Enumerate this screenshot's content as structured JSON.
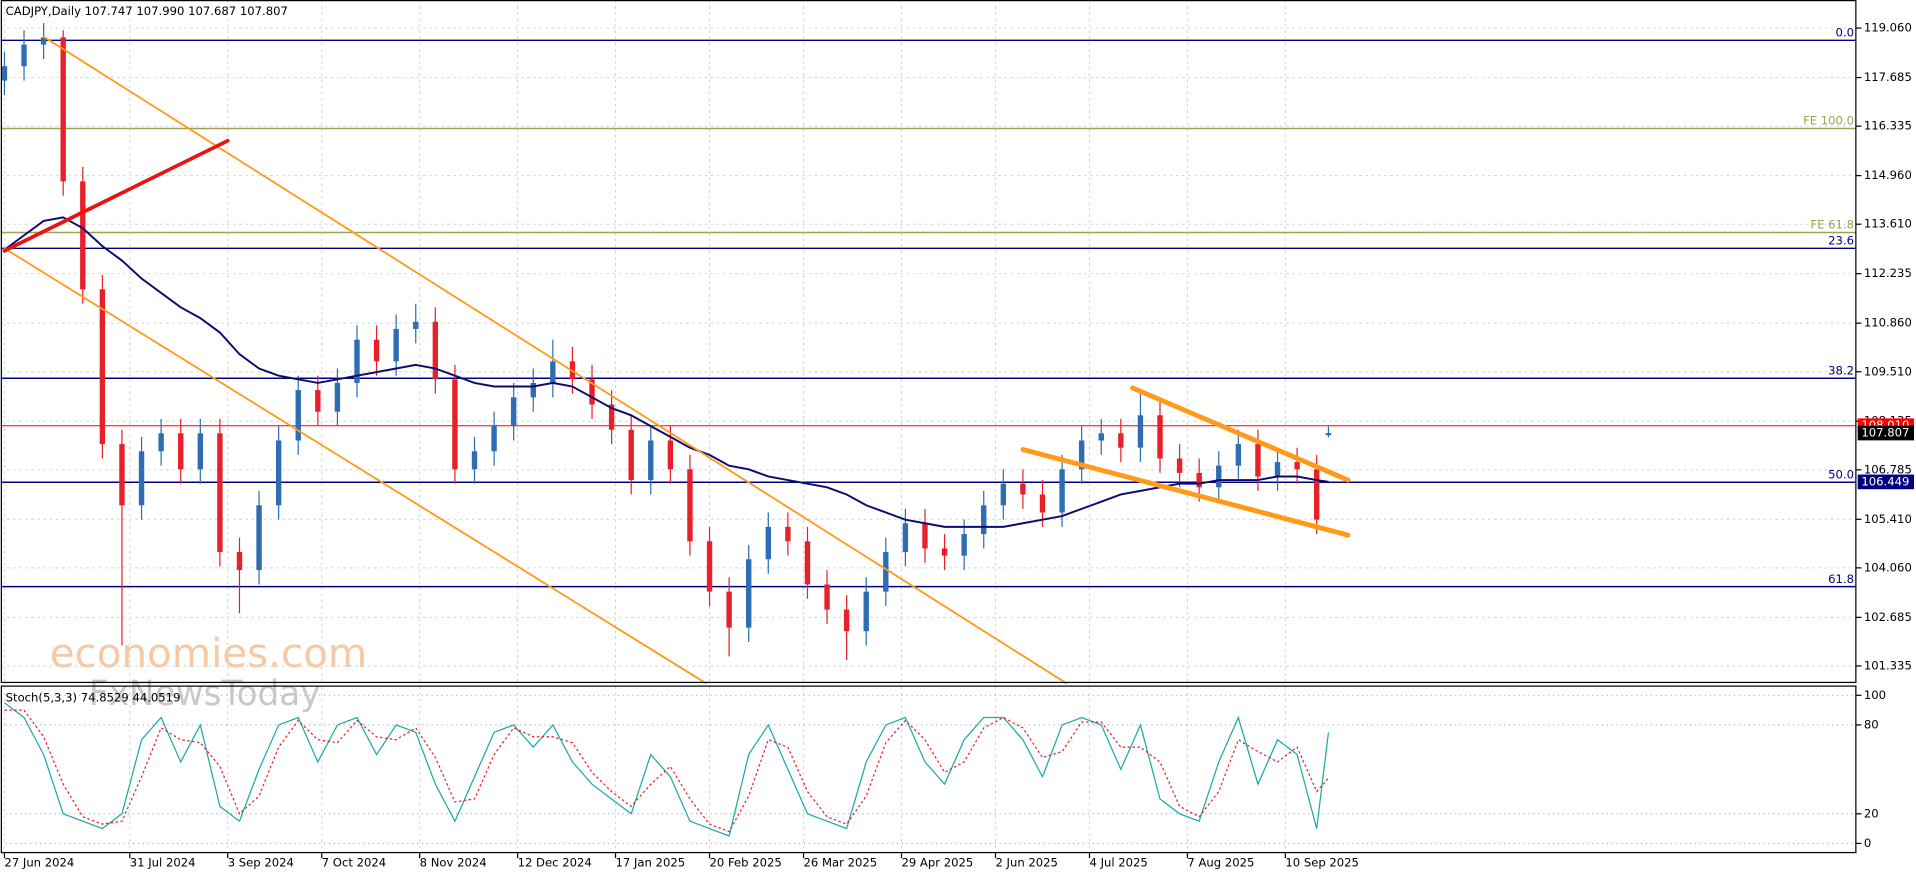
{
  "chart_data": [
    {
      "type": "candlestick",
      "title": "CADJPY,Daily",
      "ohlc_labels": [
        "107.747",
        "107.990",
        "107.687",
        "107.807"
      ],
      "x": [
        0,
        5,
        10,
        15,
        20,
        25,
        30,
        35,
        40,
        45,
        50,
        55,
        60,
        65,
        70,
        75,
        80,
        85,
        90,
        95,
        100,
        105,
        110,
        115,
        120,
        125,
        130,
        135,
        140,
        145,
        150,
        155,
        160,
        165,
        170,
        175,
        180,
        185,
        190,
        195,
        200,
        205,
        210,
        215,
        220,
        225,
        230,
        235,
        240,
        245,
        250,
        255,
        260,
        265,
        270,
        275,
        280,
        285,
        290,
        295,
        300,
        305,
        310,
        315,
        320,
        325,
        330,
        335,
        338
      ],
      "open": [
        117.6,
        118.0,
        118.6,
        118.8,
        114.8,
        111.8,
        107.5,
        105.8,
        107.3,
        107.8,
        106.8,
        107.8,
        104.5,
        104.0,
        105.8,
        107.6,
        109.0,
        108.4,
        109.2,
        110.4,
        109.8,
        110.7,
        110.9,
        109.3,
        106.8,
        107.3,
        108.0,
        108.8,
        109.2,
        109.8,
        109.3,
        108.6,
        107.9,
        106.5,
        107.6,
        106.8,
        104.8,
        103.4,
        102.4,
        104.3,
        105.2,
        104.8,
        103.6,
        102.9,
        102.3,
        103.4,
        104.5,
        105.3,
        104.6,
        104.4,
        105.0,
        105.8,
        106.4,
        106.1,
        105.6,
        106.8,
        107.6,
        107.8,
        107.4,
        108.3,
        107.1,
        106.7,
        106.3,
        106.9,
        107.5,
        106.6,
        107.0,
        106.8,
        107.747
      ],
      "high": [
        118.4,
        119.0,
        119.2,
        119.0,
        115.2,
        112.2,
        107.9,
        107.7,
        108.2,
        108.2,
        108.2,
        108.2,
        104.9,
        106.2,
        108.0,
        109.4,
        109.4,
        109.6,
        110.8,
        110.8,
        111.1,
        111.4,
        111.3,
        109.7,
        107.7,
        108.4,
        109.2,
        109.6,
        110.4,
        110.2,
        109.7,
        109.0,
        108.3,
        108.0,
        108.0,
        107.2,
        105.2,
        103.8,
        104.7,
        105.6,
        105.6,
        105.2,
        104.0,
        103.3,
        103.8,
        104.9,
        105.7,
        105.7,
        105.0,
        105.4,
        106.2,
        106.8,
        106.8,
        106.5,
        107.2,
        108.0,
        108.2,
        108.2,
        109.0,
        108.7,
        107.5,
        107.1,
        107.3,
        107.9,
        107.9,
        107.4,
        107.4,
        107.2,
        107.99
      ],
      "low": [
        117.2,
        117.6,
        118.2,
        114.4,
        111.4,
        107.1,
        101.9,
        105.4,
        106.9,
        106.4,
        106.4,
        104.1,
        102.8,
        103.6,
        105.4,
        107.2,
        108.0,
        108.0,
        108.8,
        109.4,
        109.4,
        110.3,
        108.9,
        106.4,
        106.4,
        106.9,
        107.6,
        108.4,
        108.8,
        108.9,
        108.2,
        107.5,
        106.1,
        106.1,
        106.4,
        104.4,
        103.0,
        101.6,
        102.0,
        103.9,
        104.4,
        103.2,
        102.5,
        101.5,
        101.9,
        103.0,
        104.1,
        104.2,
        104.0,
        104.0,
        104.6,
        105.4,
        105.7,
        105.2,
        105.2,
        106.4,
        107.2,
        107.0,
        107.0,
        106.7,
        106.3,
        105.9,
        105.9,
        106.5,
        106.2,
        106.2,
        106.4,
        105.0,
        107.687
      ],
      "close": [
        118.0,
        118.6,
        118.8,
        114.8,
        111.8,
        107.5,
        105.8,
        107.3,
        107.8,
        106.8,
        107.8,
        104.5,
        104.0,
        105.8,
        107.6,
        109.0,
        108.4,
        109.2,
        110.4,
        109.8,
        110.7,
        110.9,
        109.3,
        106.8,
        107.3,
        108.0,
        108.8,
        109.2,
        109.8,
        109.3,
        108.6,
        107.9,
        106.5,
        107.6,
        106.8,
        104.8,
        103.4,
        102.4,
        104.3,
        105.2,
        104.8,
        103.6,
        102.9,
        102.3,
        103.4,
        104.5,
        105.3,
        104.6,
        104.4,
        105.0,
        105.8,
        106.4,
        106.1,
        105.6,
        106.8,
        107.6,
        107.8,
        107.4,
        108.3,
        107.1,
        106.7,
        106.3,
        106.9,
        107.5,
        106.6,
        107.0,
        106.8,
        105.4,
        107.807
      ],
      "up_color": "#2e6db4",
      "down_color": "#e8202a",
      "moving_average": {
        "color": "#0c0c6e",
        "values": [
          112.9,
          113.3,
          113.7,
          113.8,
          113.5,
          113.0,
          112.6,
          112.1,
          111.7,
          111.3,
          111.0,
          110.6,
          110.0,
          109.6,
          109.4,
          109.3,
          109.2,
          109.3,
          109.4,
          109.5,
          109.6,
          109.7,
          109.6,
          109.4,
          109.2,
          109.1,
          109.1,
          109.1,
          109.2,
          109.1,
          108.8,
          108.5,
          108.3,
          108.0,
          107.7,
          107.4,
          107.2,
          106.9,
          106.8,
          106.6,
          106.5,
          106.4,
          106.3,
          106.1,
          105.8,
          105.6,
          105.4,
          105.3,
          105.2,
          105.2,
          105.2,
          105.2,
          105.3,
          105.4,
          105.5,
          105.7,
          105.9,
          106.1,
          106.2,
          106.3,
          106.4,
          106.4,
          106.5,
          106.5,
          106.5,
          106.6,
          106.6,
          106.5,
          106.45
        ]
      },
      "xlim": [
        -0.94,
        472.8
      ],
      "xticks": [
        {
          "value": 0,
          "label": "27 Jun 2024"
        },
        {
          "value": 32,
          "label": "31 Jul 2024"
        },
        {
          "value": 57,
          "label": "3 Sep 2024"
        },
        {
          "value": 81,
          "label": "7 Oct 2024"
        },
        {
          "value": 106,
          "label": "8 Nov 2024"
        },
        {
          "value": 131,
          "label": "12 Dec 2024"
        },
        {
          "value": 156,
          "label": "17 Jan 2025"
        },
        {
          "value": 180,
          "label": "20 Feb 2025"
        },
        {
          "value": 204,
          "label": "26 Mar 2025"
        },
        {
          "value": 229,
          "label": "29 Apr 2025"
        },
        {
          "value": 253,
          "label": "2 Jun 2025"
        },
        {
          "value": 277,
          "label": "4 Jul 2025"
        },
        {
          "value": 302,
          "label": "7 Aug 2025"
        },
        {
          "value": 327,
          "label": "10 Sep 2025"
        }
      ],
      "ylim": [
        100.86,
        119.84
      ],
      "yticks": [
        {
          "value": 119.06,
          "label": "119.060"
        },
        117.685,
        116.335,
        {
          "value": 114.96,
          "label": "114.960"
        },
        {
          "value": 113.61,
          "label": "113.610"
        },
        112.235,
        {
          "value": 110.86,
          "label": "110.860"
        },
        {
          "value": 109.51,
          "label": "109.510"
        },
        108.135,
        106.785,
        {
          "value": 105.41,
          "label": "105.410"
        },
        {
          "value": 104.06,
          "label": "104.060"
        },
        102.685,
        101.335
      ],
      "grid": true,
      "levels": [
        {
          "value": 118.72,
          "label": "0.0",
          "color": "#000080"
        },
        {
          "value": 116.27,
          "label": "FE 100.0",
          "color": "#a0a050"
        },
        {
          "value": 113.38,
          "label": "FE 61.8",
          "color": "#a0a050"
        },
        {
          "value": 112.94,
          "label": "23.6",
          "color": "#000080"
        },
        {
          "value": 109.33,
          "label": "38.2",
          "color": "#000080"
        },
        {
          "value": 106.44,
          "label": "50.0",
          "color": "#000080"
        },
        {
          "value": 103.54,
          "label": "61.8",
          "color": "#000080"
        }
      ],
      "current_line": {
        "value": 108.01,
        "color": "#ff0000"
      },
      "price_markers": [
        {
          "value": 108.01,
          "label": "108.010",
          "color": "#ff0000"
        },
        {
          "value": 107.807,
          "label": "107.807",
          "color": "#000000"
        },
        {
          "value": 106.449,
          "label": "106.449",
          "color": "#000080"
        }
      ],
      "trendlines": [
        {
          "x1": 10,
          "y1": 118.82,
          "x2": 271,
          "y2": 100.86,
          "color": "#ff9a1a",
          "width": 1.5
        },
        {
          "x1": 0,
          "y1": 112.94,
          "x2": 179,
          "y2": 100.86,
          "color": "#ff9a1a",
          "width": 1.5
        },
        {
          "x1": 0,
          "y1": 112.87,
          "x2": 57,
          "y2": 115.93,
          "color": "#ee1111",
          "width": 3
        },
        {
          "x1": 288,
          "y1": 109.06,
          "x2": 343,
          "y2": 106.5,
          "color": "#ff9a1a",
          "width": 4
        },
        {
          "x1": 260,
          "y1": 107.35,
          "x2": 343,
          "y2": 104.97,
          "color": "#ff9a1a",
          "width": 4
        }
      ],
      "watermark": [
        "economies.com",
        "FxNewsToday"
      ]
    },
    {
      "type": "line",
      "title": "Stoch(5,3,3)",
      "ylim": [
        -6.6,
        105.8
      ],
      "yticks": [
        0,
        20,
        80,
        100
      ],
      "grid": true,
      "series": [
        {
          "color": "#1aa8a8",
          "dashed": false,
          "values": [
            95,
            85,
            60,
            20,
            15,
            10,
            20,
            70,
            85,
            55,
            80,
            25,
            15,
            50,
            80,
            85,
            55,
            80,
            85,
            60,
            80,
            75,
            40,
            15,
            45,
            75,
            80,
            65,
            80,
            55,
            40,
            30,
            20,
            60,
            45,
            15,
            10,
            5,
            60,
            80,
            50,
            20,
            15,
            10,
            55,
            80,
            85,
            55,
            40,
            70,
            85,
            85,
            70,
            45,
            80,
            85,
            80,
            50,
            80,
            30,
            20,
            15,
            55,
            85,
            40,
            70,
            60,
            10,
            74.8529
          ]
        },
        {
          "color": "#e8202a",
          "dashed": true,
          "values": [
            90,
            90,
            72,
            40,
            18,
            13,
            15,
            45,
            78,
            70,
            68,
            52,
            20,
            32,
            65,
            83,
            70,
            68,
            83,
            72,
            70,
            78,
            58,
            28,
            30,
            60,
            78,
            72,
            72,
            68,
            48,
            35,
            25,
            40,
            52,
            30,
            13,
            8,
            32,
            70,
            65,
            35,
            18,
            13,
            32,
            68,
            83,
            70,
            48,
            55,
            78,
            85,
            78,
            58,
            62,
            82,
            82,
            65,
            65,
            55,
            25,
            18,
            35,
            70,
            62,
            55,
            65,
            35,
            44.0519
          ]
        }
      ]
    }
  ]
}
